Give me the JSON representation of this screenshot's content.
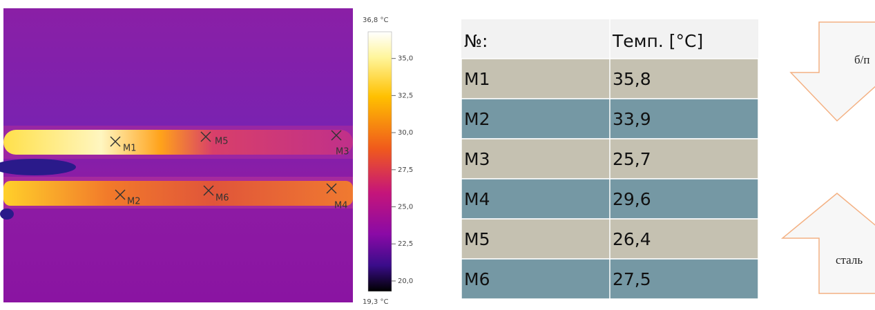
{
  "thermal_image": {
    "markers": [
      "M1",
      "M5",
      "M3",
      "M2",
      "M6",
      "M4"
    ]
  },
  "colorbar": {
    "max": {
      "value": 36.8,
      "label": "36,8 °C"
    },
    "min": {
      "value": 19.3,
      "label": "19,3 °C"
    },
    "ticks": [
      {
        "value": 35,
        "label": "35,0"
      },
      {
        "value": 32.5,
        "label": "32,5"
      },
      {
        "value": 30,
        "label": "30,0"
      },
      {
        "value": 27.5,
        "label": "27,5"
      },
      {
        "value": 25,
        "label": "25,0"
      },
      {
        "value": 22.5,
        "label": "22,5"
      },
      {
        "value": 20,
        "label": "20,0"
      }
    ]
  },
  "table": {
    "header": [
      "№:",
      "Темп. [°C]"
    ],
    "rows": [
      [
        "M1",
        "35,8"
      ],
      [
        "M2",
        "33,9"
      ],
      [
        "M3",
        "25,7"
      ],
      [
        "M4",
        "29,6"
      ],
      [
        "M5",
        "26,4"
      ],
      [
        "M6",
        "27,5"
      ]
    ]
  },
  "callouts": [
    "б/п",
    "сталь"
  ]
}
